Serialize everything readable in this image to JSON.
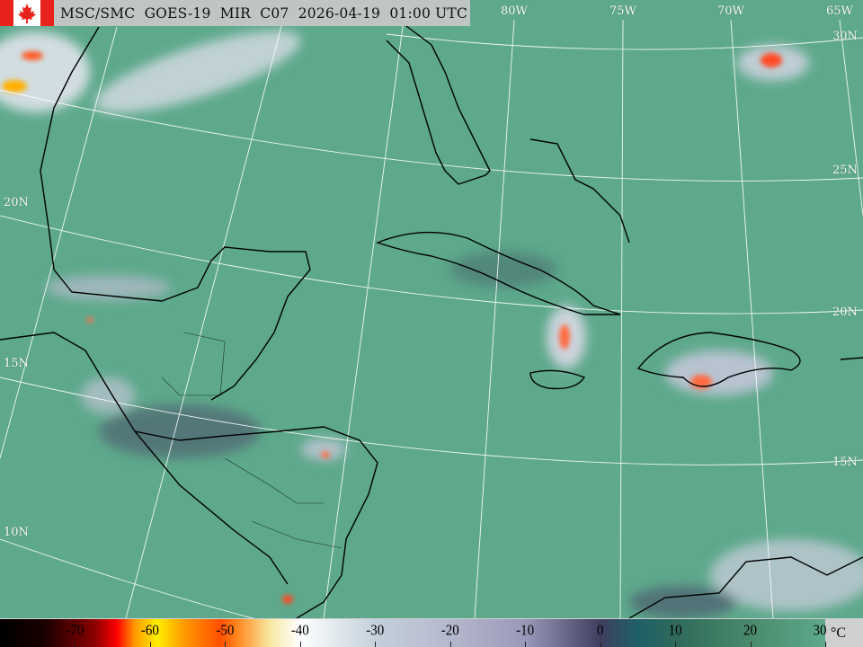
{
  "header": {
    "title": "MSC/SMC  GOES-19  MIR  C07  2026-04-19  01:00 UTC",
    "logo": "canada-flag"
  },
  "map": {
    "background_color": "#5ea98c",
    "longitude_labels": [
      "80W",
      "75W",
      "70W",
      "65W"
    ],
    "latitude_labels_right": [
      "30N",
      "25N",
      "20N",
      "15N"
    ],
    "latitude_labels_left": [
      "20N",
      "15N",
      "10N"
    ]
  },
  "colorbar": {
    "ticks": [
      "-70",
      "-60",
      "-50",
      "-40",
      "-30",
      "-20",
      "-10",
      "0",
      "10",
      "20",
      "30"
    ],
    "range": [
      -80,
      30
    ],
    "unit": "°C"
  }
}
